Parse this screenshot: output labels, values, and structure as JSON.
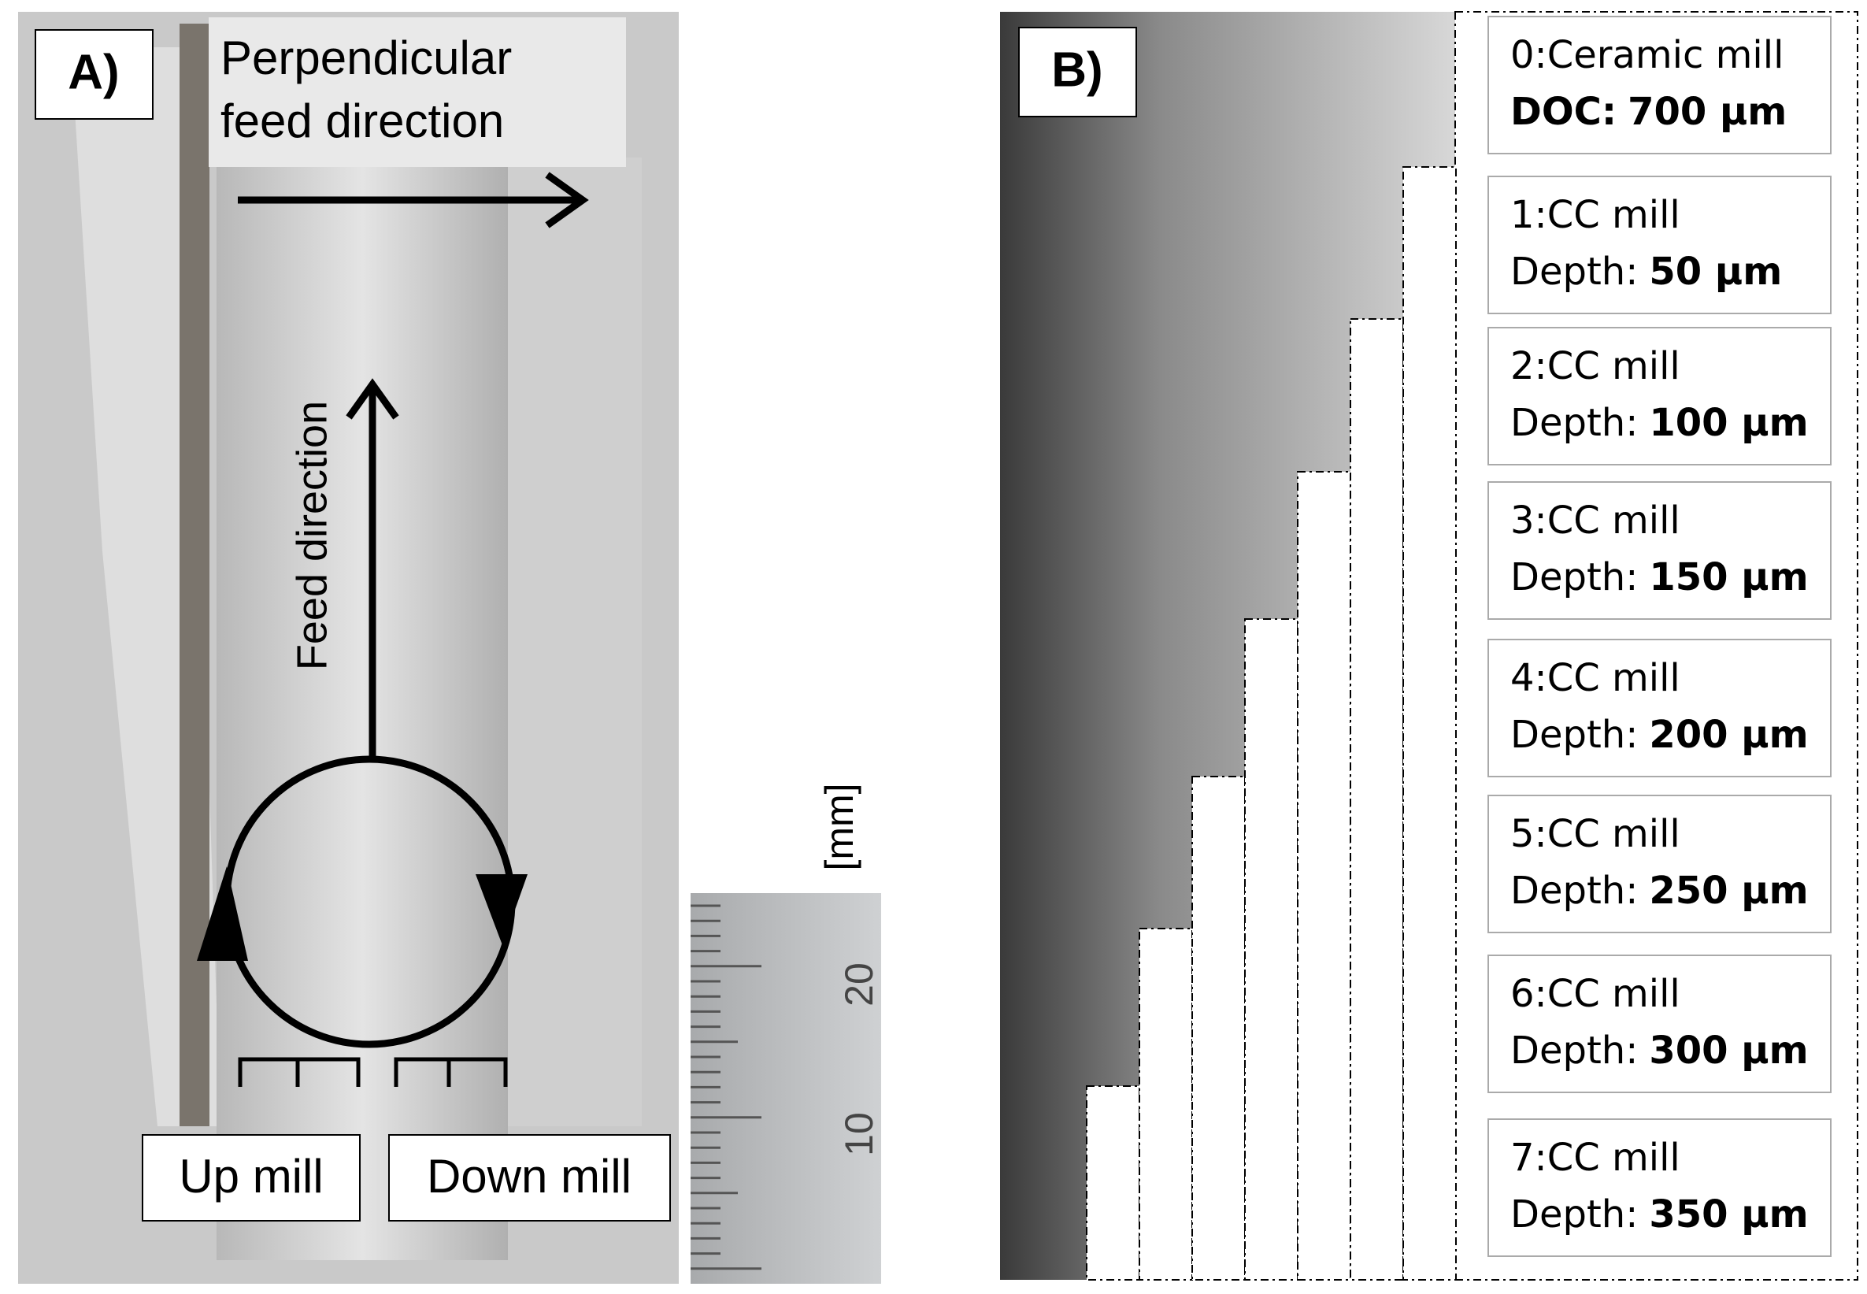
{
  "panel_a": {
    "label": "A)",
    "perpendicular_lines": [
      "Perpendicular",
      "feed direction"
    ],
    "feed_direction": "Feed direction",
    "up_mill": "Up mill",
    "down_mill": "Down mill",
    "ruler": {
      "unit": "[mm]",
      "labels": [
        "20",
        "10"
      ]
    }
  },
  "panel_b": {
    "label": "B)",
    "legend": [
      {
        "title": "0:Ceramic mill",
        "label": "DOC:",
        "value": "700 µm"
      },
      {
        "title": "1:CC mill",
        "label": "Depth:",
        "value": "50 µm"
      },
      {
        "title": "2:CC mill",
        "label": "Depth:",
        "value": "100 µm"
      },
      {
        "title": "3:CC mill",
        "label": "Depth:",
        "value": "150 µm"
      },
      {
        "title": "4:CC mill",
        "label": "Depth:",
        "value": "200 µm"
      },
      {
        "title": "5:CC mill",
        "label": "Depth:",
        "value": "250 µm"
      },
      {
        "title": "6:CC mill",
        "label": "Depth:",
        "value": "300 µm"
      },
      {
        "title": "7:CC mill",
        "label": "Depth:",
        "value": "350 µm"
      }
    ]
  }
}
